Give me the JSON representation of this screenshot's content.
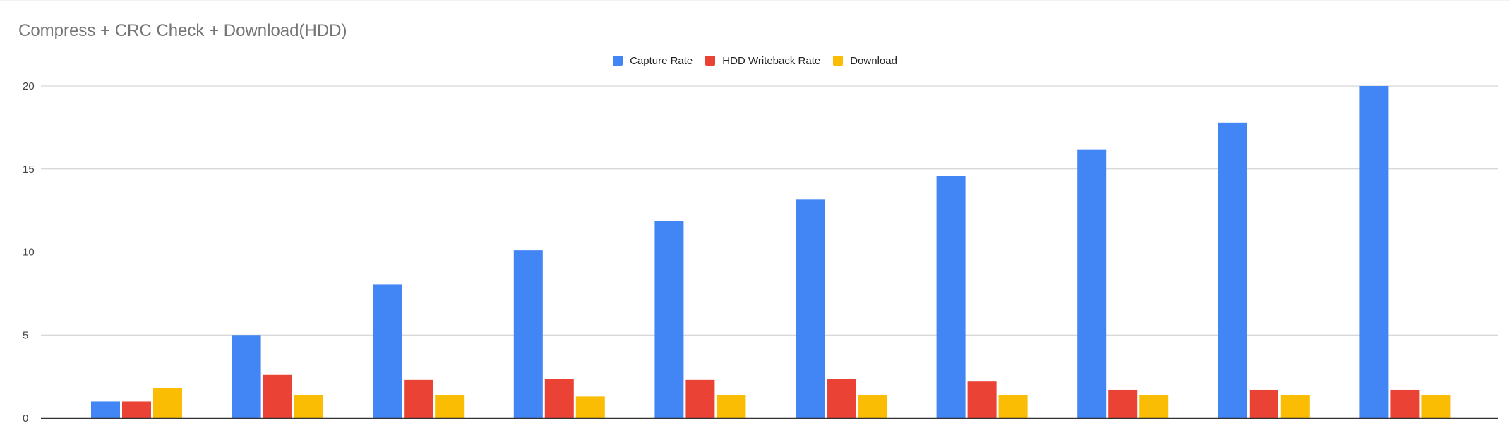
{
  "colors": {
    "capture": "#4285f4",
    "writeback": "#ea4335",
    "download": "#fbbc04",
    "grid": "#cccccc",
    "axis": "#333333",
    "title": "#757575"
  },
  "chart_data": {
    "type": "bar",
    "title": "Compress + CRC Check + Download(HDD)",
    "xlabel": "",
    "ylabel": "",
    "ylim": [
      0,
      20
    ],
    "yticks": [
      0,
      5,
      10,
      15,
      20
    ],
    "grid": true,
    "legend_position": "top-center",
    "categories": [
      "",
      "",
      "",
      "",
      "",
      "",
      "",
      "",
      "",
      ""
    ],
    "series": [
      {
        "name": "Capture Rate",
        "color": "#4285f4",
        "values": [
          1.0,
          5.0,
          8.05,
          10.1,
          11.85,
          13.15,
          14.6,
          16.15,
          17.8,
          20.0
        ]
      },
      {
        "name": "HDD Writeback Rate",
        "color": "#ea4335",
        "values": [
          1.0,
          2.6,
          2.3,
          2.35,
          2.3,
          2.35,
          2.2,
          1.7,
          1.7,
          1.7
        ]
      },
      {
        "name": "Download",
        "color": "#fbbc04",
        "values": [
          1.8,
          1.4,
          1.4,
          1.3,
          1.4,
          1.4,
          1.4,
          1.4,
          1.4,
          1.4
        ]
      }
    ]
  }
}
